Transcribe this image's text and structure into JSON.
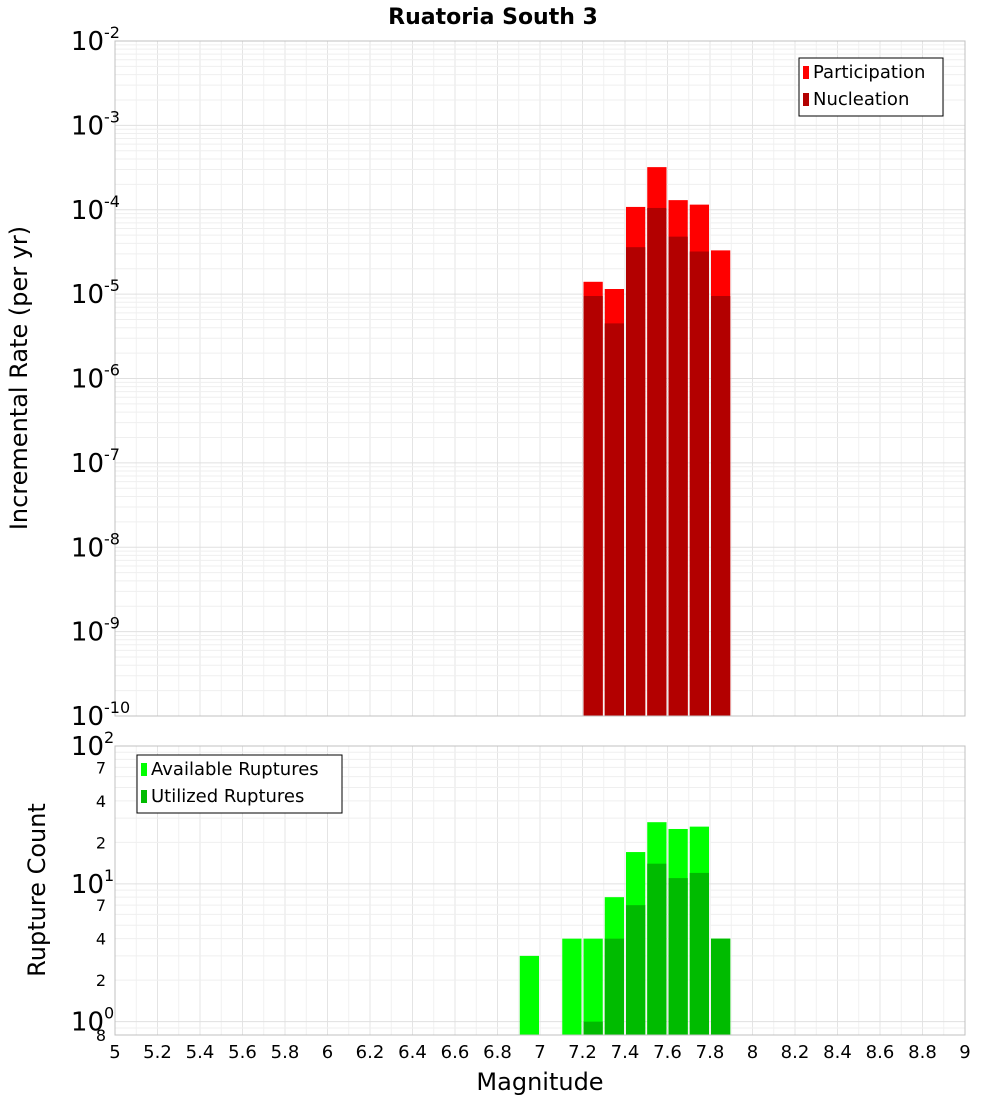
{
  "chart_data": [
    {
      "type": "bar",
      "title": "Ruatoria South 3",
      "xlabel": "",
      "ylabel": "Incremental Rate (per yr)",
      "xlim": [
        5,
        9
      ],
      "ylim": [
        1e-10,
        0.01
      ],
      "yscale": "log",
      "grid": true,
      "legend_position": "top-right",
      "bar_width": 0.1,
      "x_ticks": [
        "5",
        "5.2",
        "5.4",
        "5.6",
        "5.8",
        "6",
        "6.2",
        "6.4",
        "6.6",
        "6.8",
        "7",
        "7.2",
        "7.4",
        "7.6",
        "7.8",
        "8",
        "8.2",
        "8.4",
        "8.6",
        "8.8",
        "9"
      ],
      "y_ticks": [
        {
          "base": "10",
          "exp": "-2"
        },
        {
          "base": "10",
          "exp": "-3"
        },
        {
          "base": "10",
          "exp": "-4"
        },
        {
          "base": "10",
          "exp": "-5"
        },
        {
          "base": "10",
          "exp": "-6"
        },
        {
          "base": "10",
          "exp": "-7"
        },
        {
          "base": "10",
          "exp": "-8"
        },
        {
          "base": "10",
          "exp": "-9"
        },
        {
          "base": "10",
          "exp": "-10"
        }
      ],
      "x": [
        7.25,
        7.35,
        7.45,
        7.55,
        7.65,
        7.75,
        7.85
      ],
      "series": [
        {
          "name": "Participation",
          "color": "#ff0000",
          "values": [
            1.4e-05,
            1.15e-05,
            0.000108,
            0.00032,
            0.00013,
            0.000115,
            3.3e-05
          ]
        },
        {
          "name": "Nucleation",
          "color": "#b30000",
          "values": [
            9.5e-06,
            4.5e-06,
            3.6e-05,
            0.000105,
            4.8e-05,
            3.2e-05,
            9.5e-06
          ]
        }
      ]
    },
    {
      "type": "bar",
      "title": "",
      "xlabel": "Magnitude",
      "ylabel": "Rupture Count",
      "xlim": [
        5,
        9
      ],
      "ylim": [
        0.8,
        100
      ],
      "yscale": "log",
      "grid": true,
      "legend_position": "top-left",
      "bar_width": 0.1,
      "x_ticks": [
        "5",
        "5.2",
        "5.4",
        "5.6",
        "5.8",
        "6",
        "6.2",
        "6.4",
        "6.6",
        "6.8",
        "7",
        "7.2",
        "7.4",
        "7.6",
        "7.8",
        "8",
        "8.2",
        "8.4",
        "8.6",
        "8.8",
        "9"
      ],
      "y_major_ticks": [
        {
          "value": 100,
          "base": "10",
          "exp": "2"
        },
        {
          "value": 10,
          "base": "10",
          "exp": "1"
        },
        {
          "value": 1,
          "base": "10",
          "exp": "0"
        }
      ],
      "y_minor_ticks": [
        {
          "value": 70,
          "label": "7"
        },
        {
          "value": 40,
          "label": "4"
        },
        {
          "value": 20,
          "label": "2"
        },
        {
          "value": 7,
          "label": "7"
        },
        {
          "value": 4,
          "label": "4"
        },
        {
          "value": 2,
          "label": "2"
        },
        {
          "value": 0.8,
          "label": "8"
        }
      ],
      "x": [
        6.95,
        7.15,
        7.25,
        7.35,
        7.45,
        7.55,
        7.65,
        7.75,
        7.85
      ],
      "series": [
        {
          "name": "Available Ruptures",
          "color": "#00ff00",
          "values": [
            3,
            4,
            4,
            8,
            17,
            28,
            25,
            26,
            4
          ]
        },
        {
          "name": "Utilized Ruptures",
          "color": "#00bb00",
          "values": [
            0,
            0,
            1,
            4,
            7,
            14,
            11,
            12,
            4
          ]
        }
      ]
    }
  ],
  "x_axis_label": "Magnitude"
}
